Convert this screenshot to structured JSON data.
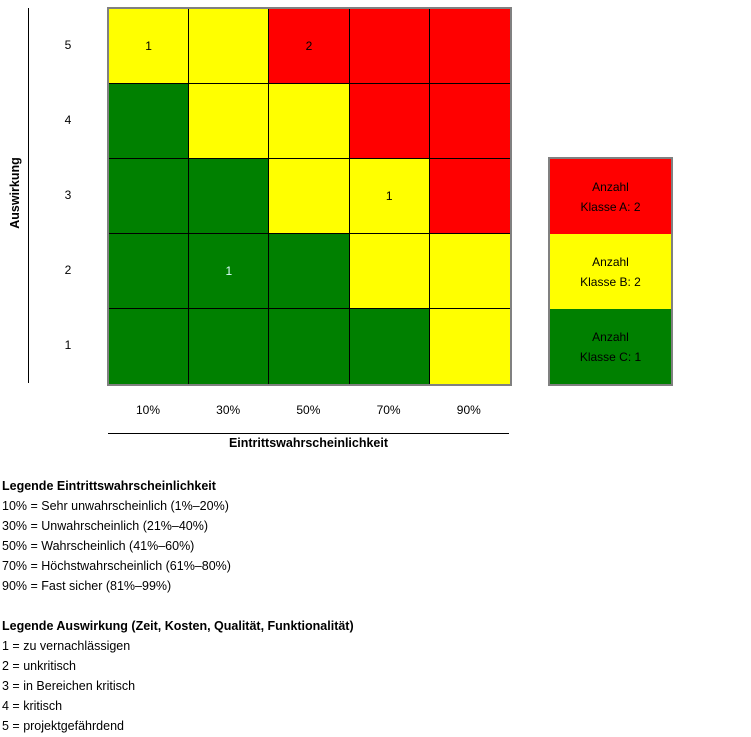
{
  "chart_data": {
    "type": "heatmap",
    "xlabel": "Eintrittswahrscheinlichkeit",
    "ylabel": "Auswirkung",
    "x_categories": [
      "10%",
      "30%",
      "50%",
      "70%",
      "90%"
    ],
    "y_categories": [
      "1",
      "2",
      "3",
      "4",
      "5"
    ],
    "colors": {
      "A": "#ff0000",
      "B": "#ffff00",
      "C": "#008000"
    },
    "grid_classes": [
      [
        "C",
        "C",
        "C",
        "C",
        "B"
      ],
      [
        "C",
        "C",
        "C",
        "B",
        "B"
      ],
      [
        "C",
        "C",
        "B",
        "B",
        "A"
      ],
      [
        "C",
        "B",
        "B",
        "A",
        "A"
      ],
      [
        "B",
        "B",
        "A",
        "A",
        "A"
      ]
    ],
    "cell_counts": [
      {
        "x": "10%",
        "y": "5",
        "count": "1"
      },
      {
        "x": "50%",
        "y": "5",
        "count": "2"
      },
      {
        "x": "70%",
        "y": "3",
        "count": "1"
      },
      {
        "x": "30%",
        "y": "2",
        "count": "1"
      }
    ]
  },
  "summary": [
    {
      "line1": "Anzahl",
      "line2": "Klasse A: 2",
      "class": "A"
    },
    {
      "line1": "Anzahl",
      "line2": "Klasse B: 2",
      "class": "B"
    },
    {
      "line1": "Anzahl",
      "line2": "Klasse C: 1",
      "class": "C"
    }
  ],
  "legend_probability": {
    "title": "Legende Eintrittswahrscheinlichkeit",
    "items": [
      "10% = Sehr unwahrscheinlich (1%–20%)",
      "30% = Unwahrscheinlich (21%–40%)",
      "50% = Wahrscheinlich (41%–60%)",
      "70% = Höchstwahrscheinlich (61%–80%)",
      "90% = Fast sicher (81%–99%)"
    ]
  },
  "legend_impact": {
    "title": "Legende Auswirkung (Zeit, Kosten, Qualität, Funktionalität)",
    "items": [
      "1 = zu vernachlässigen",
      "2 = unkritisch",
      "3 = in Bereichen kritisch",
      "4 = kritisch",
      "5 = projektgefährdend"
    ]
  }
}
